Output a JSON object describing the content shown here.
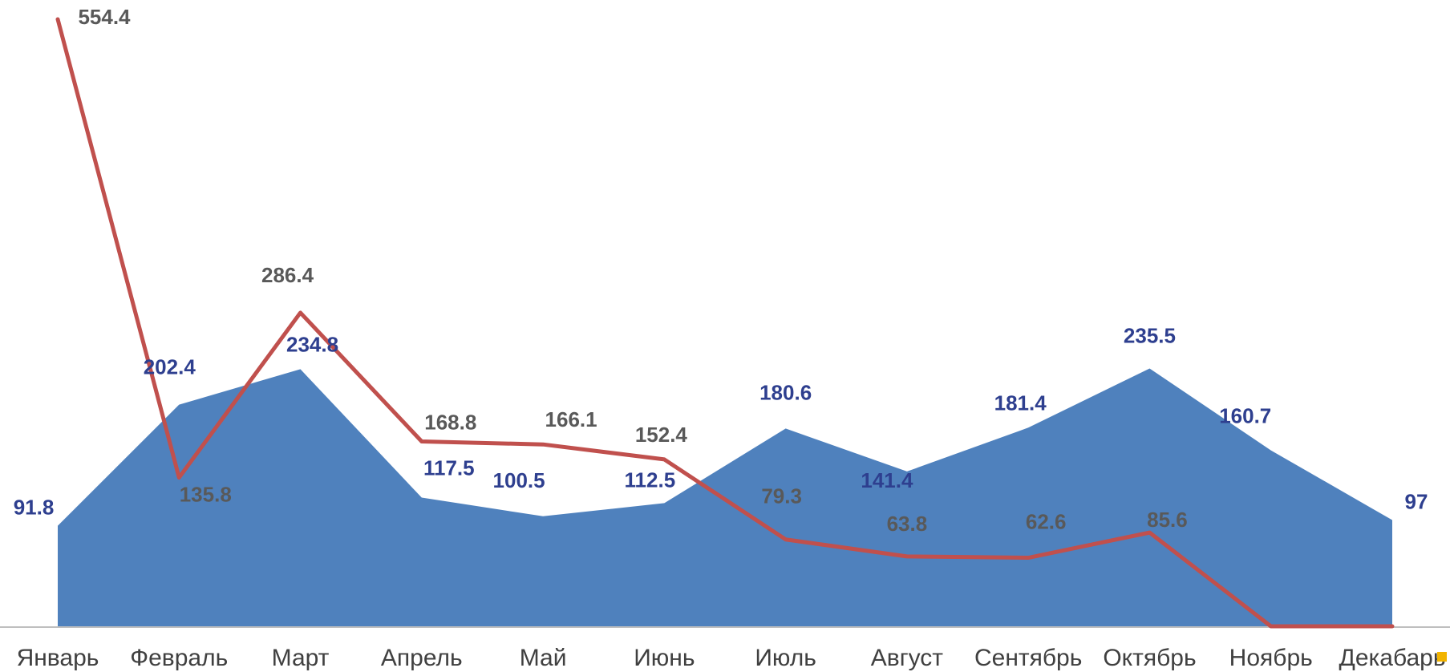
{
  "chart_data": {
    "type": "area",
    "categories": [
      "Январь",
      "Февраль",
      "Март",
      "Апрель",
      "Май",
      "Июнь",
      "Июль",
      "Август",
      "Сентябрь",
      "Октябрь",
      "Ноябрь",
      "Декабарь"
    ],
    "series": [
      {
        "kind": "area",
        "color": "#4f81bd",
        "label_color": "#2e3f8f",
        "values": [
          91.8,
          202.4,
          234.8,
          117.5,
          100.5,
          112.5,
          180.6,
          141.4,
          181.4,
          235.5,
          160.7,
          97
        ]
      },
      {
        "kind": "line",
        "color": "#c0504d",
        "label_color": "#595959",
        "values": [
          554.4,
          135.8,
          286.4,
          168.8,
          166.1,
          152.4,
          79.3,
          63.8,
          62.6,
          85.6,
          0,
          0
        ],
        "labels": [
          "554.4",
          "135.8",
          "286.4",
          "168.8",
          "166.1",
          "152.4",
          "79.3",
          "63.8",
          "62.6",
          "85.6",
          "",
          ""
        ]
      }
    ],
    "ylim": [
      0,
      554.4
    ],
    "grid": false,
    "legend": "none"
  }
}
